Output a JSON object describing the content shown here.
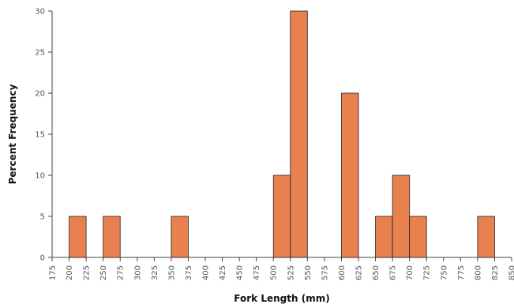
{
  "chart_data": {
    "type": "bar",
    "subtype": "histogram",
    "xlabel": "Fork Length (mm)",
    "ylabel": "Percent Frequency",
    "bin_width": 25,
    "xlim": [
      175,
      850
    ],
    "ylim": [
      0,
      30
    ],
    "x_ticks": [
      "175",
      "200",
      "225",
      "250",
      "275",
      "300",
      "325",
      "350",
      "375",
      "400",
      "425",
      "450",
      "475",
      "500",
      "525",
      "550",
      "575",
      "600",
      "625",
      "650",
      "675",
      "700",
      "725",
      "750",
      "775",
      "800",
      "825",
      "850"
    ],
    "y_ticks": [
      "0",
      "5",
      "10",
      "15",
      "20",
      "25",
      "30"
    ],
    "bins": [
      {
        "start": 200,
        "end": 225,
        "value": 5
      },
      {
        "start": 250,
        "end": 275,
        "value": 5
      },
      {
        "start": 350,
        "end": 375,
        "value": 5
      },
      {
        "start": 500,
        "end": 525,
        "value": 10
      },
      {
        "start": 525,
        "end": 550,
        "value": 30
      },
      {
        "start": 600,
        "end": 625,
        "value": 20
      },
      {
        "start": 650,
        "end": 675,
        "value": 5
      },
      {
        "start": 675,
        "end": 700,
        "value": 10
      },
      {
        "start": 700,
        "end": 725,
        "value": 5
      },
      {
        "start": 800,
        "end": 825,
        "value": 5
      }
    ],
    "grid": false,
    "bar_color": "#e8804f"
  }
}
